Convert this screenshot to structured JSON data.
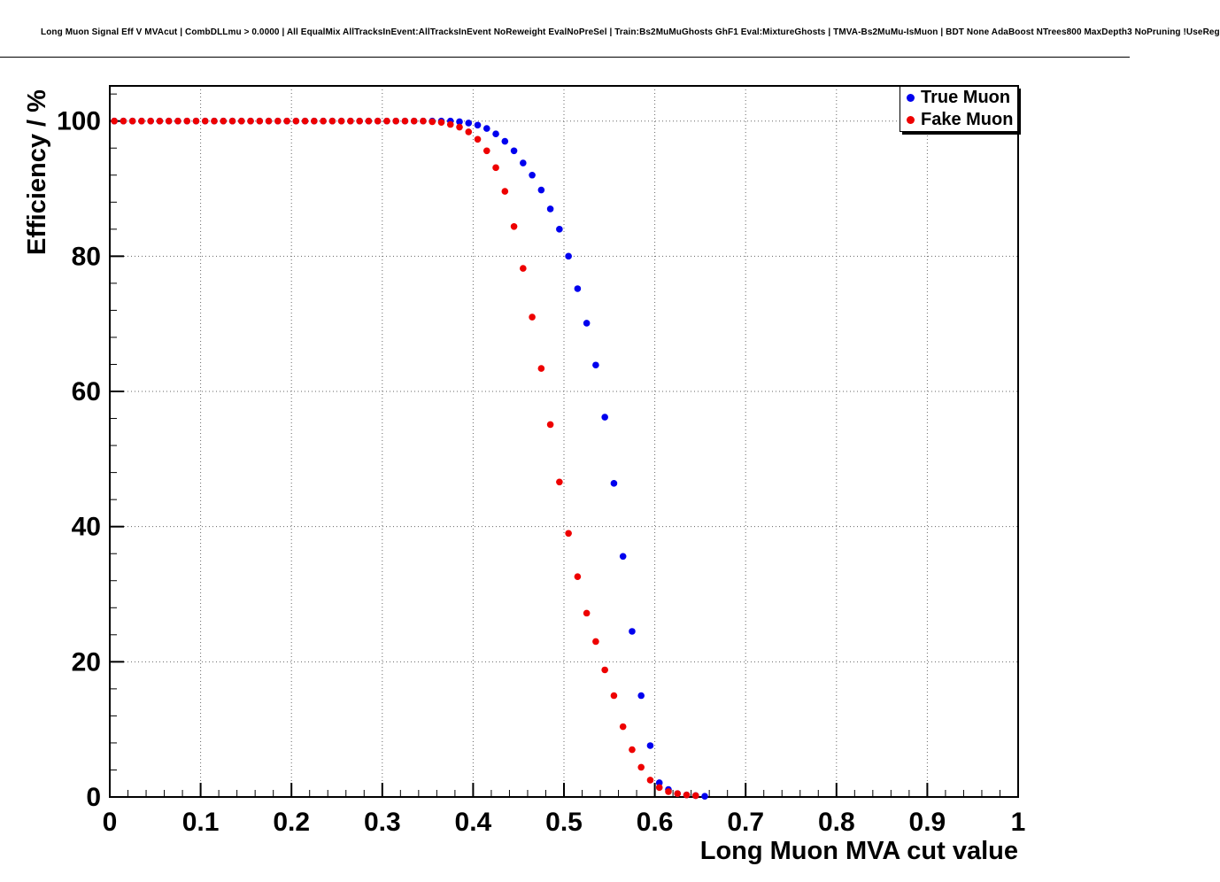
{
  "title": "Long Muon Signal Eff V MVAcut | CombDLLmu > 0.0000 | All EqualMix AllTracksInEvent:AllTracksInEvent NoReweight EvalNoPreSel | Train:Bs2MuMuGhosts GhF1 Eval:MixtureGhosts | TMVA-Bs2MuMu-IsMuon | BDT None AdaBoost NTrees800 MaxDepth3 NoPruning !UseReg",
  "chart_data": {
    "type": "scatter",
    "title": "",
    "xlabel": "Long Muon MVA cut value",
    "ylabel": "Efficiency / %",
    "xlim": [
      0,
      1
    ],
    "ylim": [
      0,
      105.2
    ],
    "grid": true,
    "grid_style": "dotted",
    "legend_position": "top-right",
    "x_ticks": [
      0,
      0.1,
      0.2,
      0.3,
      0.4,
      0.5,
      0.6,
      0.7,
      0.8,
      0.9,
      1
    ],
    "x_tick_labels": [
      "0",
      "0.1",
      "0.2",
      "0.3",
      "0.4",
      "0.5",
      "0.6",
      "0.7",
      "0.8",
      "0.9",
      "1"
    ],
    "y_ticks": [
      0,
      20,
      40,
      60,
      80,
      100
    ],
    "y_tick_labels": [
      "0",
      "20",
      "40",
      "60",
      "80",
      "100"
    ],
    "series": [
      {
        "name": "True Muon",
        "color": "#0000ee",
        "marker": "circle",
        "x": [
          0.005,
          0.015,
          0.025,
          0.035,
          0.045,
          0.055,
          0.065,
          0.075,
          0.085,
          0.095,
          0.105,
          0.115,
          0.125,
          0.135,
          0.145,
          0.155,
          0.165,
          0.175,
          0.185,
          0.195,
          0.205,
          0.215,
          0.225,
          0.235,
          0.245,
          0.255,
          0.265,
          0.275,
          0.285,
          0.295,
          0.305,
          0.315,
          0.325,
          0.335,
          0.345,
          0.355,
          0.365,
          0.375,
          0.385,
          0.395,
          0.405,
          0.415,
          0.425,
          0.435,
          0.445,
          0.455,
          0.465,
          0.475,
          0.485,
          0.495,
          0.505,
          0.515,
          0.525,
          0.535,
          0.545,
          0.555,
          0.565,
          0.575,
          0.585,
          0.595,
          0.605,
          0.615,
          0.625,
          0.635,
          0.645,
          0.655
        ],
        "y": [
          100,
          100,
          100,
          100,
          100,
          100,
          100,
          100,
          100,
          100,
          100,
          100,
          100,
          100,
          100,
          100,
          100,
          100,
          100,
          100,
          100,
          100,
          100,
          100,
          100,
          100,
          100,
          100,
          100,
          100,
          100,
          100,
          100,
          100,
          100,
          100,
          100,
          100,
          99.9,
          99.7,
          99.4,
          98.9,
          98.1,
          97.0,
          95.6,
          93.8,
          92.0,
          89.8,
          87.0,
          84.0,
          80.0,
          75.2,
          70.1,
          63.9,
          56.2,
          46.4,
          35.6,
          24.5,
          15.0,
          7.6,
          2.1,
          1.1,
          0.5,
          0.3,
          0.2,
          0.1
        ]
      },
      {
        "name": "Fake Muon",
        "color": "#ee0000",
        "marker": "circle",
        "x": [
          0.005,
          0.015,
          0.025,
          0.035,
          0.045,
          0.055,
          0.065,
          0.075,
          0.085,
          0.095,
          0.105,
          0.115,
          0.125,
          0.135,
          0.145,
          0.155,
          0.165,
          0.175,
          0.185,
          0.195,
          0.205,
          0.215,
          0.225,
          0.235,
          0.245,
          0.255,
          0.265,
          0.275,
          0.285,
          0.295,
          0.305,
          0.315,
          0.325,
          0.335,
          0.345,
          0.355,
          0.365,
          0.375,
          0.385,
          0.395,
          0.405,
          0.415,
          0.425,
          0.435,
          0.445,
          0.455,
          0.465,
          0.475,
          0.485,
          0.495,
          0.505,
          0.515,
          0.525,
          0.535,
          0.545,
          0.555,
          0.565,
          0.575,
          0.585,
          0.595,
          0.605,
          0.615,
          0.625,
          0.635,
          0.645
        ],
        "y": [
          100,
          100,
          100,
          100,
          100,
          100,
          100,
          100,
          100,
          100,
          100,
          100,
          100,
          100,
          100,
          100,
          100,
          100,
          100,
          100,
          100,
          100,
          100,
          100,
          100,
          100,
          100,
          100,
          100,
          100,
          100,
          100,
          100,
          100,
          100,
          99.9,
          99.8,
          99.5,
          99.1,
          98.4,
          97.3,
          95.6,
          93.1,
          89.6,
          84.4,
          78.2,
          71.0,
          63.4,
          55.1,
          46.6,
          39.0,
          32.6,
          27.2,
          23.0,
          18.8,
          15.0,
          10.4,
          7.0,
          4.4,
          2.5,
          1.4,
          0.8,
          0.5,
          0.3,
          0.2
        ]
      }
    ]
  }
}
